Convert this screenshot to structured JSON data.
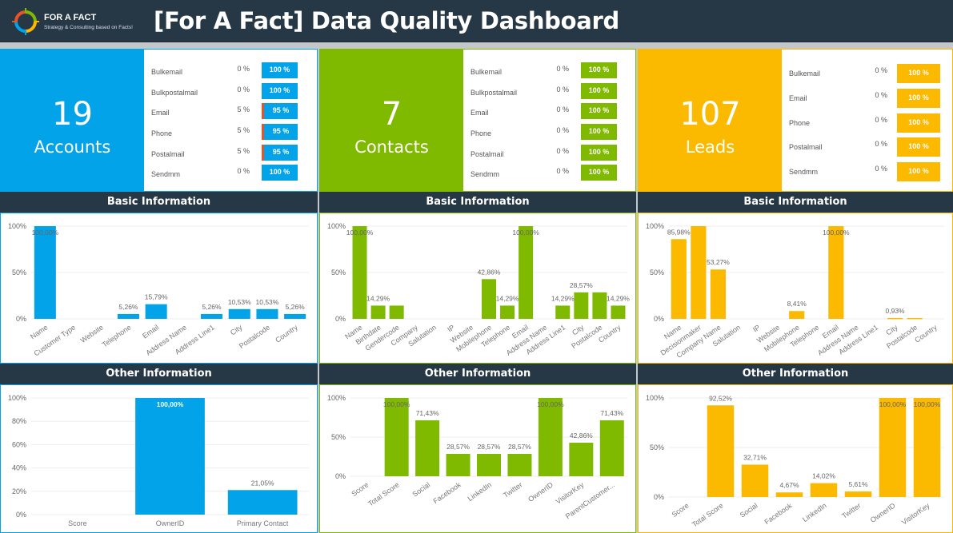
{
  "header": {
    "brand": "FOR A FACT",
    "tagline": "Strategy & Consulting based on Facts!",
    "title": "[For A Fact] Data Quality Dashboard"
  },
  "colors": {
    "accounts": "#03a3ea",
    "contacts": "#7fba00",
    "leads": "#fbb900",
    "header": "#263845",
    "fail": "#e8542a"
  },
  "sections": {
    "basic": "Basic Information",
    "other": "Other Information"
  },
  "panels": [
    {
      "key": "accounts",
      "count": "19",
      "label": "Accounts",
      "color": "#03a3ea",
      "kpis": [
        {
          "label": "Bulkemail",
          "fail": "0 %",
          "ok": "100 %",
          "fail_value": 0
        },
        {
          "label": "Bulkpostalmail",
          "fail": "0 %",
          "ok": "100 %",
          "fail_value": 0
        },
        {
          "label": "Email",
          "fail": "5 %",
          "ok": "95 %",
          "fail_value": 5
        },
        {
          "label": "Phone",
          "fail": "5 %",
          "ok": "95 %",
          "fail_value": 5
        },
        {
          "label": "Postalmail",
          "fail": "5 %",
          "ok": "95 %",
          "fail_value": 5
        },
        {
          "label": "Sendmm",
          "fail": "0 %",
          "ok": "100 %",
          "fail_value": 0
        }
      ]
    },
    {
      "key": "contacts",
      "count": "7",
      "label": "Contacts",
      "color": "#7fba00",
      "kpis": [
        {
          "label": "Bulkemail",
          "fail": "0 %",
          "ok": "100 %",
          "fail_value": 0
        },
        {
          "label": "Bulkpostalmail",
          "fail": "0 %",
          "ok": "100 %",
          "fail_value": 0
        },
        {
          "label": "Email",
          "fail": "0 %",
          "ok": "100 %",
          "fail_value": 0
        },
        {
          "label": "Phone",
          "fail": "0 %",
          "ok": "100 %",
          "fail_value": 0
        },
        {
          "label": "Postalmail",
          "fail": "0 %",
          "ok": "100 %",
          "fail_value": 0
        },
        {
          "label": "Sendmm",
          "fail": "0 %",
          "ok": "100 %",
          "fail_value": 0
        }
      ]
    },
    {
      "key": "leads",
      "count": "107",
      "label": "Leads",
      "color": "#fbb900",
      "kpis": [
        {
          "label": "Bulkemail",
          "fail": "0 %",
          "ok": "100 %",
          "fail_value": 0
        },
        {
          "label": "Email",
          "fail": "0 %",
          "ok": "100 %",
          "fail_value": 0
        },
        {
          "label": "Phone",
          "fail": "0 %",
          "ok": "100 %",
          "fail_value": 0
        },
        {
          "label": "Postalmail",
          "fail": "0 %",
          "ok": "100 %",
          "fail_value": 0
        },
        {
          "label": "Sendmm",
          "fail": "0 %",
          "ok": "100 %",
          "fail_value": 0
        }
      ]
    }
  ],
  "chart_data": [
    {
      "id": "accounts-basic",
      "type": "bar",
      "color": "#03a3ea",
      "ylim": [
        0,
        100
      ],
      "yticks": [
        "0%",
        "50%",
        "100%"
      ],
      "rotate": true,
      "categories": [
        "Name",
        "Customer Type",
        "Website",
        "Telephone",
        "Email",
        "Address Name",
        "Address Line1",
        "City",
        "Postalcode",
        "Country"
      ],
      "values": [
        100,
        0,
        0,
        5.26,
        15.79,
        0,
        5.26,
        10.53,
        10.53,
        5.26
      ],
      "labels": [
        "100,00%",
        "",
        "",
        "5,26%",
        "15,79%",
        "",
        "5,26%",
        "10,53%",
        "10,53%",
        "5,26%"
      ]
    },
    {
      "id": "contacts-basic",
      "type": "bar",
      "color": "#7fba00",
      "ylim": [
        0,
        100
      ],
      "yticks": [
        "0%",
        "50%",
        "100%"
      ],
      "rotate": true,
      "categories": [
        "Name",
        "Birthdate",
        "Gendercode",
        "Company",
        "Salutation",
        "IP",
        "Website",
        "Mobilephone",
        "Telephone",
        "Email",
        "Address Name",
        "Address Line1",
        "City",
        "Postalcode",
        "Country"
      ],
      "values": [
        100,
        14.29,
        14.29,
        0,
        0,
        0,
        0,
        42.86,
        14.29,
        100,
        0,
        14.29,
        28.57,
        28.57,
        14.29
      ],
      "labels": [
        "100,00%",
        "14,29%",
        "",
        "",
        "",
        "",
        "",
        "42,86%",
        "14,29%",
        "100,00%",
        "",
        "14,29%",
        "28,57%",
        "",
        "14,29%"
      ]
    },
    {
      "id": "leads-basic",
      "type": "bar",
      "color": "#fbb900",
      "ylim": [
        0,
        100
      ],
      "yticks": [
        "0%",
        "50%",
        "100%"
      ],
      "rotate": true,
      "categories": [
        "Name",
        "Decisionmaker",
        "Company Name",
        "Salutation",
        "IP",
        "Website",
        "Mobilephone",
        "Telephone",
        "Email",
        "Address Name",
        "Address Line1",
        "City",
        "Postalcode",
        "Country"
      ],
      "values": [
        85.98,
        100,
        53.27,
        0,
        0,
        0,
        8.41,
        0,
        100,
        0,
        0,
        0.93,
        0.93,
        0
      ],
      "labels": [
        "85,98%",
        "",
        "53,27%",
        "",
        "",
        "",
        "8,41%",
        "",
        "100,00%",
        "",
        "",
        "0,93%",
        "",
        ""
      ]
    },
    {
      "id": "accounts-other",
      "type": "bar",
      "color": "#03a3ea",
      "ylim": [
        0,
        100
      ],
      "yticks": [
        "0%",
        "20%",
        "40%",
        "60%",
        "80%",
        "100%"
      ],
      "rotate": false,
      "categories": [
        "Score",
        "OwnerID",
        "Primary Contact"
      ],
      "values": [
        0,
        100,
        21.05
      ],
      "labels": [
        "",
        "100,00%",
        "21,05%"
      ]
    },
    {
      "id": "contacts-other",
      "type": "bar",
      "color": "#7fba00",
      "ylim": [
        0,
        100
      ],
      "yticks": [
        "0%",
        "50%",
        "100%"
      ],
      "rotate": true,
      "categories": [
        "Score",
        "Total Score",
        "Social",
        "Facebook",
        "LinkedIn",
        "Twitter",
        "OwnerID",
        "VisitorKey",
        "ParentCustomer..."
      ],
      "values": [
        0,
        100,
        71.43,
        28.57,
        28.57,
        28.57,
        100,
        42.86,
        71.43
      ],
      "labels": [
        "",
        "100,00%",
        "71,43%",
        "28,57%",
        "28,57%",
        "28,57%",
        "100,00%",
        "42,86%",
        "71,43%"
      ]
    },
    {
      "id": "leads-other",
      "type": "bar",
      "color": "#fbb900",
      "ylim": [
        0,
        100
      ],
      "yticks": [
        "0%",
        "50%",
        "100%"
      ],
      "rotate": true,
      "categories": [
        "Score",
        "Total Score",
        "Social",
        "Facebook",
        "LinkedIn",
        "Twitter",
        "OwnerID",
        "VisitorKey"
      ],
      "values": [
        0,
        92.52,
        32.71,
        4.67,
        14.02,
        5.61,
        100,
        100
      ],
      "labels": [
        "",
        "92,52%",
        "32,71%",
        "4,67%",
        "14,02%",
        "5,61%",
        "100,00%",
        "100,00%"
      ]
    }
  ]
}
